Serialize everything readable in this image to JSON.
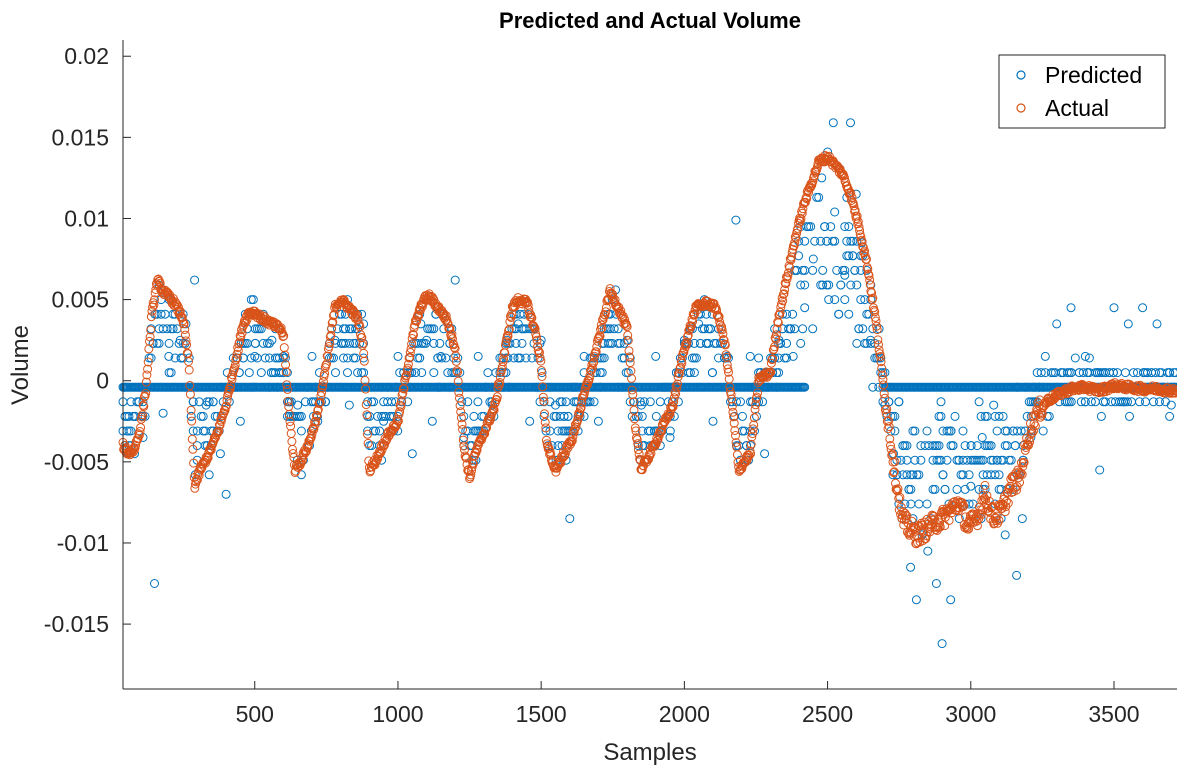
{
  "colors": {
    "predicted": "#0072BD",
    "actual": "#D95319",
    "axis": "#262626"
  },
  "chart_data": {
    "type": "scatter",
    "title": "Predicted and Actual Volume",
    "xlabel": "Samples",
    "ylabel": "Volume",
    "xlim": [
      40,
      3720
    ],
    "ylim": [
      -0.019,
      0.021
    ],
    "xticks": [
      500,
      1000,
      1500,
      2000,
      2500,
      3000,
      3500
    ],
    "xtick_labels": [
      "500",
      "1000",
      "1500",
      "2000",
      "2500",
      "3000",
      "3500"
    ],
    "yticks": [
      0.02,
      0.015,
      0.01,
      0.005,
      0,
      -0.005,
      -0.01,
      -0.015
    ],
    "ytick_labels": [
      "0.02",
      "0.015",
      "0.01",
      "0.005",
      "0",
      "-0.005",
      "-0.01",
      "-0.015"
    ],
    "grid": false,
    "legend_position": "top-right",
    "series": [
      {
        "name": "Predicted",
        "color_key": "predicted",
        "marker": "circle-open",
        "base_level": -0.0004,
        "quantization_step": 0.0009,
        "note": "Predicted values are concentrated on a dense line at about -0.0004 with quantized scatter above and below; extreme points listed in x/y.",
        "x": [
          60,
          80,
          110,
          150,
          180,
          200,
          240,
          260,
          290,
          330,
          380,
          400,
          450,
          500,
          560,
          600,
          650,
          700,
          720,
          780,
          830,
          880,
          950,
          1000,
          1050,
          1080,
          1100,
          1120,
          1150,
          1200,
          1230,
          1280,
          1330,
          1380,
          1420,
          1460,
          1500,
          1550,
          1600,
          1650,
          1700,
          1760,
          1800,
          1850,
          1900,
          1950,
          2000,
          2050,
          2100,
          2150,
          2180,
          2230,
          2280,
          2330,
          2380,
          2420,
          2450,
          2480,
          2500,
          2520,
          2540,
          2560,
          2580,
          2600,
          2620,
          2650,
          2680,
          2700,
          2730,
          2760,
          2790,
          2810,
          2830,
          2850,
          2880,
          2900,
          2930,
          2960,
          3000,
          3040,
          3080,
          3120,
          3160,
          3180,
          3210,
          3260,
          3300,
          3350,
          3400,
          3450,
          3500,
          3550,
          3600,
          3650,
          3700
        ],
        "y": [
          -0.0045,
          -0.0045,
          -0.0035,
          -0.0125,
          -0.002,
          0.0015,
          0.0025,
          0.0035,
          0.0062,
          -0.0015,
          -0.0045,
          -0.007,
          -0.0025,
          0.0015,
          0.0025,
          0.0015,
          -0.0015,
          0.0015,
          -0.0025,
          0.0025,
          -0.0015,
          0.0035,
          -0.0025,
          0.0015,
          -0.0045,
          0.0035,
          0.0025,
          -0.0025,
          0.0015,
          0.0062,
          -0.0035,
          0.0015,
          -0.0015,
          0.0025,
          0.0035,
          -0.0025,
          0.0025,
          -0.0015,
          -0.0085,
          0.0015,
          -0.0025,
          0.0056,
          0.0025,
          -0.0015,
          0.0015,
          -0.0035,
          0.0025,
          0.0035,
          -0.0025,
          0.0015,
          0.0099,
          0.0015,
          -0.0045,
          0.0025,
          0.0015,
          0.0045,
          0.0075,
          0.0125,
          0.0141,
          0.0159,
          0.0131,
          0.0065,
          0.0159,
          0.0115,
          0.0085,
          0.0025,
          0.0032,
          -0.0015,
          -0.0045,
          -0.0085,
          -0.0115,
          -0.0135,
          -0.0095,
          -0.0105,
          -0.0125,
          -0.0162,
          -0.0135,
          -0.0085,
          -0.0065,
          -0.0035,
          -0.0015,
          -0.0095,
          -0.012,
          -0.0085,
          -0.0035,
          0.0015,
          0.0035,
          0.0045,
          0.0015,
          -0.0055,
          0.0045,
          0.0035,
          0.0045,
          0.0035,
          -0.0015
        ]
      },
      {
        "name": "Actual",
        "color_key": "actual",
        "marker": "circle-open",
        "x": [
          40,
          60,
          80,
          100,
          120,
          140,
          160,
          180,
          200,
          220,
          250,
          270,
          290,
          310,
          340,
          370,
          400,
          430,
          460,
          480,
          500,
          530,
          560,
          590,
          600,
          620,
          640,
          660,
          690,
          720,
          750,
          780,
          800,
          830,
          860,
          880,
          900,
          920,
          960,
          1000,
          1030,
          1060,
          1090,
          1110,
          1140,
          1170,
          1200,
          1230,
          1250,
          1270,
          1300,
          1340,
          1370,
          1400,
          1420,
          1450,
          1480,
          1500,
          1520,
          1550,
          1580,
          1610,
          1640,
          1680,
          1720,
          1740,
          1770,
          1800,
          1830,
          1850,
          1880,
          1920,
          1960,
          2000,
          2040,
          2080,
          2110,
          2140,
          2170,
          2190,
          2230,
          2260,
          2300,
          2330,
          2360,
          2390,
          2420,
          2450,
          2470,
          2500,
          2530,
          2550,
          2580,
          2610,
          2640,
          2670,
          2700,
          2730,
          2760,
          2780,
          2810,
          2840,
          2870,
          2900,
          2930,
          2960,
          2990,
          3020,
          3050,
          3080,
          3110,
          3140,
          3170,
          3200,
          3230,
          3270,
          3310,
          3350,
          3400,
          3450,
          3500,
          3550,
          3600,
          3650,
          3700
        ],
        "y": [
          -0.004,
          -0.0045,
          -0.0042,
          -0.003,
          -0.0005,
          0.004,
          0.0062,
          0.0055,
          0.0052,
          0.0048,
          0.0038,
          0.001,
          -0.0065,
          -0.0055,
          -0.0045,
          -0.0032,
          -0.0015,
          0.001,
          0.0035,
          0.0042,
          0.0042,
          0.0038,
          0.0035,
          0.0032,
          0.0028,
          -0.002,
          -0.0055,
          -0.005,
          -0.0038,
          -0.002,
          0.001,
          0.0045,
          0.005,
          0.0045,
          0.0038,
          0.002,
          -0.0055,
          -0.005,
          -0.0035,
          -0.0025,
          0.0005,
          0.0035,
          0.005,
          0.0052,
          0.0045,
          0.0038,
          0.002,
          -0.004,
          -0.006,
          -0.0045,
          -0.0032,
          -0.0015,
          0.0015,
          0.0045,
          0.005,
          0.0048,
          0.003,
          0.001,
          -0.004,
          -0.0055,
          -0.0045,
          -0.0035,
          -0.0015,
          0.001,
          0.004,
          0.0055,
          0.0045,
          0.0032,
          -0.003,
          -0.0055,
          -0.0045,
          -0.003,
          -0.0015,
          0.002,
          0.0045,
          0.0048,
          0.0045,
          0.0025,
          -0.002,
          -0.0055,
          -0.0045,
          0.0001,
          0.0005,
          0.004,
          0.0065,
          0.009,
          0.011,
          0.0125,
          0.0135,
          0.0138,
          0.0132,
          0.0128,
          0.0115,
          0.0095,
          0.007,
          0.0035,
          -0.001,
          -0.005,
          -0.0085,
          -0.009,
          -0.0095,
          -0.0092,
          -0.0088,
          -0.0085,
          -0.008,
          -0.0075,
          -0.009,
          -0.0085,
          -0.007,
          -0.0085,
          -0.008,
          -0.0065,
          -0.006,
          -0.0035,
          -0.002,
          -0.0012,
          -0.0008,
          -0.0005,
          -0.0004,
          -0.0006,
          -0.0003,
          -0.0004,
          -0.0005,
          -0.0005,
          -0.0006
        ]
      }
    ]
  }
}
